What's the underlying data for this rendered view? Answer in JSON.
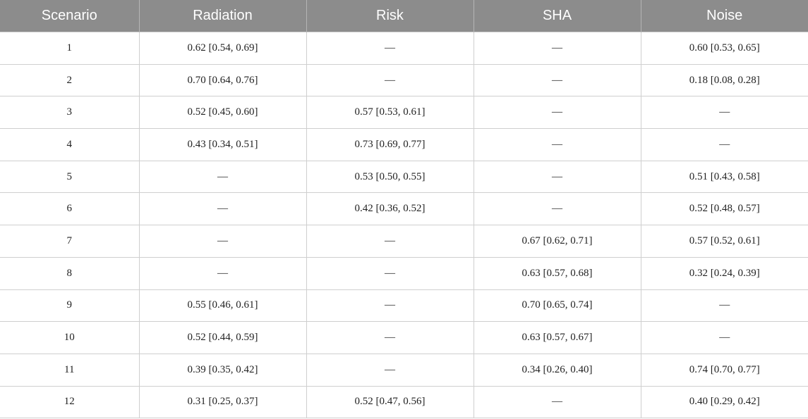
{
  "table": {
    "header": [
      "Scenario",
      "Radiation",
      "Risk",
      "SHA",
      "Noise"
    ],
    "rows": [
      [
        "1",
        "0.62 [0.54, 0.69]",
        "—",
        "—",
        "0.60 [0.53, 0.65]"
      ],
      [
        "2",
        "0.70 [0.64, 0.76]",
        "—",
        "—",
        "0.18 [0.08, 0.28]"
      ],
      [
        "3",
        "0.52 [0.45, 0.60]",
        "0.57 [0.53, 0.61]",
        "—",
        "—"
      ],
      [
        "4",
        "0.43 [0.34, 0.51]",
        "0.73 [0.69, 0.77]",
        "—",
        "—"
      ],
      [
        "5",
        "—",
        "0.53 [0.50, 0.55]",
        "—",
        "0.51 [0.43, 0.58]"
      ],
      [
        "6",
        "—",
        "0.42 [0.36, 0.52]",
        "—",
        "0.52 [0.48, 0.57]"
      ],
      [
        "7",
        "—",
        "—",
        "0.67 [0.62, 0.71]",
        "0.57 [0.52, 0.61]"
      ],
      [
        "8",
        "—",
        "—",
        "0.63 [0.57, 0.68]",
        "0.32 [0.24, 0.39]"
      ],
      [
        "9",
        "0.55 [0.46, 0.61]",
        "—",
        "0.70 [0.65, 0.74]",
        "—"
      ],
      [
        "10",
        "0.52 [0.44, 0.59]",
        "—",
        "0.63 [0.57, 0.67]",
        "—"
      ],
      [
        "11",
        "0.39 [0.35, 0.42]",
        "—",
        "0.34 [0.26, 0.40]",
        "0.74 [0.70, 0.77]"
      ],
      [
        "12",
        "0.31 [0.25, 0.37]",
        "0.52 [0.47, 0.56]",
        "—",
        "0.40 [0.29, 0.42]"
      ]
    ]
  }
}
